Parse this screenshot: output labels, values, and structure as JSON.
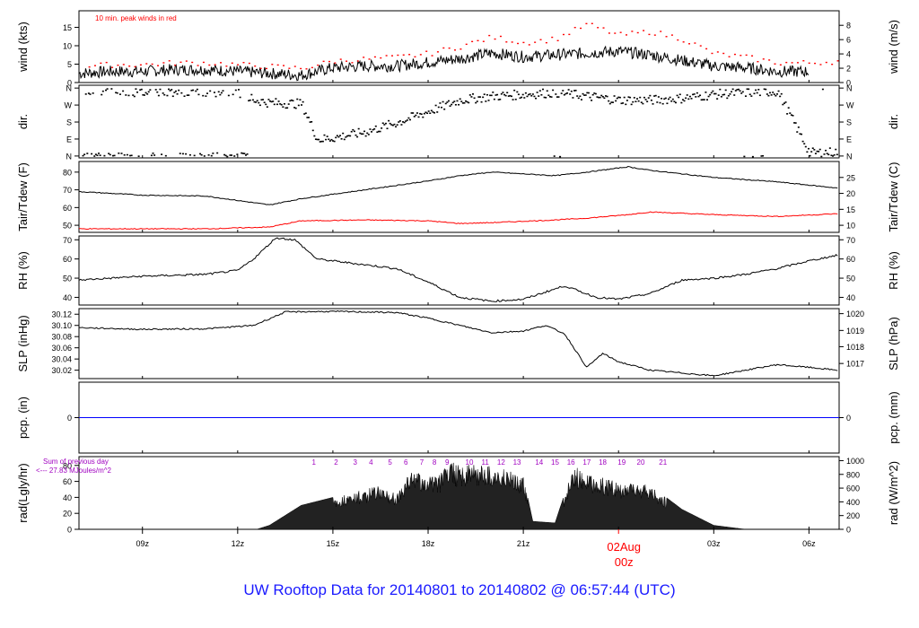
{
  "title": "UW Rooftop Data for 20140801  to  20140802 @ 06:57:44  (UTC)",
  "colors": {
    "series": "#000000",
    "peak": "#ff0000",
    "dewpoint": "#ff0000",
    "precip": "#0000ff",
    "title": "#1a1aff",
    "annotation": "#a000c0"
  },
  "time_axis": {
    "tick_labels": [
      "09z",
      "12z",
      "15z",
      "18z",
      "21z",
      "03z",
      "06z"
    ],
    "tick_hours": [
      9,
      12,
      15,
      18,
      21,
      27,
      30
    ],
    "date_label": "02Aug",
    "date_hour_label": "00z",
    "date_hour": 24,
    "range_hours": [
      7.0,
      30.95
    ]
  },
  "chart_data": [
    {
      "type": "line",
      "name": "wind",
      "ylabel_left": "wind (kts)",
      "ylabel_right": "wind (m/s)",
      "annotation": "10 min. peak winds in red",
      "ylim": [
        0,
        19.5
      ],
      "left_ticks": [
        0,
        5,
        10,
        15
      ],
      "right_tick_labels": [
        "0",
        "2",
        "4",
        "6",
        "8"
      ],
      "right_tick_values_kts": [
        0,
        3.89,
        7.78,
        11.66,
        15.55
      ],
      "x_hours": [
        7,
        8,
        9,
        10,
        11,
        12,
        13,
        14,
        15,
        16,
        17,
        18,
        19,
        20,
        21,
        22,
        23,
        24,
        25,
        26,
        27,
        28,
        29,
        30,
        31
      ],
      "wind_kts": [
        2.5,
        3,
        3,
        3.5,
        3.5,
        3,
        2.5,
        2,
        4,
        4.5,
        4.5,
        5.5,
        6.5,
        8,
        7,
        7.5,
        8,
        8.5,
        7.5,
        6,
        4.5,
        4,
        3,
        3,
        3.5
      ],
      "peak_kts": [
        4.5,
        5,
        5,
        5.5,
        5.5,
        5,
        4.5,
        4,
        6,
        6.5,
        7,
        8,
        10,
        12.5,
        11,
        12,
        16,
        13,
        14,
        12,
        8,
        7,
        5.5,
        5.5,
        6
      ]
    },
    {
      "type": "scatter",
      "name": "dir",
      "ylabel_left": "dir.",
      "ylabel_right": "dir.",
      "tick_labels": [
        "N",
        "E",
        "S",
        "W",
        "N"
      ],
      "tick_degrees": [
        0,
        90,
        180,
        270,
        360
      ],
      "ylim": [
        -10,
        375
      ],
      "x_hours": [
        7,
        8,
        9,
        10,
        11,
        12,
        12.5,
        13,
        14,
        14.5,
        15,
        16,
        17,
        18,
        19,
        20,
        21,
        22,
        23,
        24,
        25,
        26,
        27,
        28,
        29,
        30,
        30.9
      ],
      "dir_deg": [
        350,
        345,
        340,
        345,
        345,
        340,
        300,
        285,
        280,
        90,
        100,
        130,
        180,
        240,
        300,
        320,
        330,
        340,
        320,
        300,
        300,
        310,
        330,
        340,
        345,
        20,
        25
      ]
    },
    {
      "type": "line",
      "name": "temperature",
      "ylabel_left": "Tair/Tdew (F)",
      "ylabel_right": "Tair/Tdew (C)",
      "ylim": [
        46,
        86
      ],
      "left_ticks": [
        50,
        60,
        70,
        80
      ],
      "right_tick_labels": [
        "10",
        "15",
        "20",
        "25"
      ],
      "right_tick_values_f": [
        50,
        59,
        68,
        77
      ],
      "x_hours": [
        7,
        9,
        11,
        13,
        14,
        16,
        18,
        19,
        20,
        22,
        23,
        24.3,
        25,
        27,
        29,
        30.9
      ],
      "tair_f": [
        69,
        67,
        66.5,
        61.5,
        65,
        70,
        75,
        78,
        80,
        78,
        80,
        83,
        81,
        77,
        74.5,
        71
      ],
      "tdew_f": [
        48,
        48,
        48,
        49,
        52.5,
        53,
        52.5,
        51,
        51.5,
        53,
        54,
        56,
        57.5,
        56,
        55,
        56.5
      ]
    },
    {
      "type": "line",
      "name": "rh",
      "ylabel_left": "RH (%)",
      "ylabel_right": "RH (%)",
      "ylim": [
        36,
        72
      ],
      "ticks": [
        40,
        50,
        60,
        70
      ],
      "x_hours": [
        7,
        9,
        11,
        12,
        12.5,
        13.2,
        13.8,
        14.5,
        15.5,
        17,
        18,
        19,
        20,
        21,
        22.3,
        23.3,
        24,
        25,
        26,
        27,
        28,
        29,
        30,
        30.9
      ],
      "rh": [
        49,
        51,
        52,
        54,
        60,
        71,
        70,
        60,
        58,
        55,
        48,
        40,
        38,
        39,
        46,
        40,
        39,
        42,
        49,
        50,
        52,
        55,
        59,
        62
      ]
    },
    {
      "type": "line",
      "name": "slp",
      "ylabel_left": "SLP (inHg)",
      "ylabel_right": "SLP (hPa)",
      "ylim": [
        30.005,
        30.13
      ],
      "left_tick_labels": [
        "30.02",
        "30.04",
        "30.06",
        "30.08",
        "30.10",
        "30.12"
      ],
      "left_ticks": [
        30.02,
        30.04,
        30.06,
        30.08,
        30.1,
        30.12
      ],
      "right_tick_labels": [
        "1017",
        "1018",
        "1019",
        "1020"
      ],
      "right_tick_values_inhg": [
        30.032,
        30.062,
        30.091,
        30.121
      ],
      "x_hours": [
        7,
        9,
        11,
        12.5,
        13.5,
        15,
        16,
        17,
        18,
        19,
        20,
        21,
        21.7,
        22.3,
        23,
        23.5,
        24,
        25,
        26,
        27,
        28,
        29,
        30,
        30.9
      ],
      "slp_inhg": [
        30.096,
        30.093,
        30.094,
        30.1,
        30.124,
        30.125,
        30.124,
        30.123,
        30.113,
        30.1,
        30.087,
        30.09,
        30.1,
        30.085,
        30.025,
        30.05,
        30.035,
        30.02,
        30.015,
        30.01,
        30.02,
        30.03,
        30.025,
        30.02
      ]
    },
    {
      "type": "line",
      "name": "pcp",
      "ylabel_left": "pcp. (in)",
      "ylabel_right": "pcp. (mm)",
      "left_tick_labels": [
        "0"
      ],
      "right_tick_labels": [
        "0"
      ],
      "values": [
        0
      ]
    },
    {
      "type": "area",
      "name": "rad",
      "ylabel_left": "rad(Lgly/hr)",
      "ylabel_right": "rad (W/m^2)",
      "annotation_lines": [
        "Sum of previous day",
        "<--- 27.83 MJoules/m^2"
      ],
      "ylim": [
        0,
        91
      ],
      "left_tick_labels": [
        "0",
        "20",
        "40",
        "60",
        "80"
      ],
      "left_ticks": [
        0,
        20,
        40,
        60,
        80
      ],
      "right_tick_labels": [
        "0",
        "200",
        "400",
        "600",
        "800",
        "1000"
      ],
      "right_tick_values_lgly": [
        0,
        17.2,
        34.4,
        51.6,
        68.8,
        86
      ],
      "hour_markers": [
        "1",
        "2",
        "3",
        "4",
        "5",
        "6",
        "7",
        "8",
        "9",
        "10",
        "11",
        "12",
        "13",
        "14",
        "15",
        "16",
        "17",
        "18",
        "19",
        "20",
        "21"
      ],
      "hour_marker_times": [
        14.4,
        15.1,
        15.7,
        16.2,
        16.8,
        17.3,
        17.8,
        18.2,
        18.6,
        19.3,
        19.8,
        20.3,
        20.8,
        21.5,
        22.0,
        22.5,
        23.0,
        23.5,
        24.1,
        24.7,
        25.4
      ],
      "x_hours": [
        12.6,
        13,
        14,
        15,
        16,
        16.5,
        17,
        17.5,
        17.9,
        18.3,
        18.7,
        19,
        19.5,
        20,
        20.5,
        21,
        21.3,
        22,
        22.6,
        23,
        24,
        25,
        26,
        26.5,
        27,
        28
      ],
      "rad_lgly": [
        0,
        5,
        30,
        40,
        50,
        55,
        45,
        75,
        70,
        65,
        85,
        80,
        82,
        80,
        75,
        65,
        10,
        8,
        80,
        70,
        60,
        55,
        25,
        15,
        5,
        0
      ]
    }
  ]
}
